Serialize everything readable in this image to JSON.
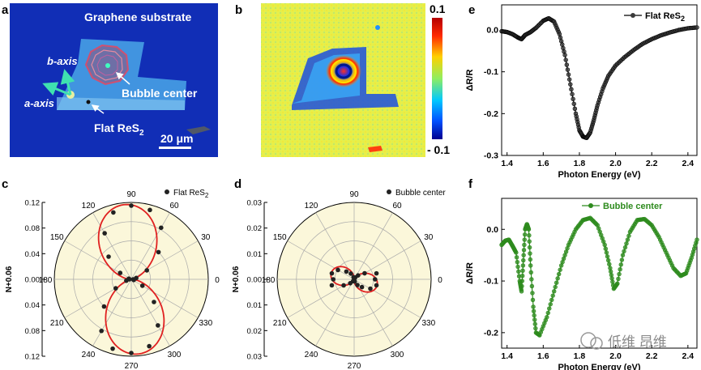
{
  "figure": {
    "panels": {
      "a": {
        "letter": "a",
        "substrate_label": "Graphene substrate",
        "b_axis_label": "b-axis",
        "a_axis_label": "a-axis",
        "bubble_label": "Bubble center",
        "flat_label_main": "Flat ReS",
        "flat_label_sub": "2",
        "scalebar_label": "20 μm"
      },
      "b": {
        "letter": "b",
        "colorbar_max": "0.1",
        "colorbar_min": "- 0.1"
      },
      "c": {
        "letter": "c"
      },
      "d": {
        "letter": "d"
      },
      "e": {
        "letter": "e"
      },
      "f": {
        "letter": "f"
      }
    },
    "watermark": "低维 昂维",
    "colors": {
      "flat_series": "#000000",
      "bubble_series": "#2e8b1e",
      "fit_curve": "#e02020",
      "polar_bg": "#fbf7da"
    }
  },
  "chart_data": [
    {
      "id": "c",
      "type": "scatter",
      "coordinate": "polar",
      "legend": "Flat ReS",
      "legend_sub": "2",
      "legend_position": "top-right",
      "ylabel": "N+0.06",
      "radial_tick_labels": [
        "0.12",
        "0.08",
        "0.04",
        "0.00",
        "0.04",
        "0.08",
        "0.12"
      ],
      "angle_labels": [
        "0",
        "30",
        "60",
        "90",
        "120",
        "150",
        "180",
        "210",
        "240",
        "270",
        "300",
        "330"
      ],
      "angles_deg": [
        0,
        15,
        30,
        45,
        60,
        75,
        90,
        105,
        120,
        135,
        150,
        165,
        180,
        195,
        210,
        225,
        240,
        255,
        270,
        285,
        300,
        315,
        330,
        345
      ],
      "values": [
        0.003,
        0.008,
        0.028,
        0.06,
        0.093,
        0.112,
        0.115,
        0.108,
        0.083,
        0.05,
        0.02,
        0.004,
        0.003,
        0.008,
        0.028,
        0.06,
        0.093,
        0.112,
        0.115,
        0.108,
        0.083,
        0.05,
        0.02,
        0.004
      ],
      "fit": "cos-squared, max along 95° / 275°",
      "r_max": 0.12
    },
    {
      "id": "d",
      "type": "scatter",
      "coordinate": "polar",
      "legend": "Bubble center",
      "legend_position": "top-right",
      "ylabel": "N+0.06",
      "radial_tick_labels": [
        "0.03",
        "0.02",
        "0.01",
        "0.00",
        "0.01",
        "0.02",
        "0.03"
      ],
      "angle_labels": [
        "0",
        "30",
        "60",
        "90",
        "120",
        "150",
        "180",
        "210",
        "240",
        "270",
        "300",
        "330"
      ],
      "angles_deg": [
        0,
        15,
        30,
        45,
        60,
        75,
        90,
        105,
        120,
        135,
        150,
        165,
        180,
        195,
        210,
        225,
        240,
        255,
        270,
        285,
        300,
        315,
        330,
        345
      ],
      "values": [
        0.0095,
        0.0105,
        0.0055,
        0.0025,
        0.001,
        0.0005,
        0.0004,
        0.001,
        0.003,
        0.005,
        0.0085,
        0.0105,
        0.0095,
        0.0105,
        0.0055,
        0.0025,
        0.001,
        0.0005,
        0.0004,
        0.001,
        0.003,
        0.005,
        0.0085,
        0.0105
      ],
      "fit": "cos-squared, max along ~165° / ~345°",
      "r_max": 0.035
    },
    {
      "id": "e",
      "type": "line",
      "legend": "Flat ReS",
      "legend_sub": "2",
      "legend_position": "top-right",
      "xlabel": "Photon Energy (eV)",
      "ylabel": "ΔR/R",
      "xlim": [
        1.37,
        2.45
      ],
      "ylim": [
        -0.3,
        0.06
      ],
      "xticks": [
        1.4,
        1.6,
        1.8,
        2.0,
        2.2,
        2.4
      ],
      "yticks": [
        0.0,
        -0.1,
        -0.2,
        -0.3
      ],
      "x": [
        1.37,
        1.4,
        1.43,
        1.46,
        1.48,
        1.5,
        1.53,
        1.56,
        1.6,
        1.63,
        1.66,
        1.69,
        1.72,
        1.75,
        1.78,
        1.8,
        1.82,
        1.84,
        1.86,
        1.88,
        1.9,
        1.93,
        1.96,
        2.0,
        2.05,
        2.1,
        2.15,
        2.2,
        2.25,
        2.3,
        2.35,
        2.4,
        2.45
      ],
      "y": [
        -0.003,
        -0.005,
        -0.01,
        -0.018,
        -0.022,
        -0.012,
        -0.005,
        0.005,
        0.022,
        0.028,
        0.02,
        -0.01,
        -0.06,
        -0.13,
        -0.2,
        -0.24,
        -0.255,
        -0.258,
        -0.245,
        -0.215,
        -0.18,
        -0.14,
        -0.11,
        -0.085,
        -0.065,
        -0.048,
        -0.033,
        -0.022,
        -0.013,
        -0.006,
        0.0,
        0.004,
        0.006
      ]
    },
    {
      "id": "f",
      "type": "line",
      "legend": "Bubble center",
      "legend_position": "top-right",
      "xlabel": "Photon Energy (eV)",
      "ylabel": "ΔR/R",
      "xlim": [
        1.37,
        2.45
      ],
      "ylim": [
        -0.23,
        0.06
      ],
      "xticks": [
        1.4,
        1.6,
        1.8,
        2.0,
        2.2,
        2.4
      ],
      "yticks": [
        0.0,
        -0.1,
        -0.2
      ],
      "x": [
        1.37,
        1.39,
        1.41,
        1.43,
        1.45,
        1.47,
        1.48,
        1.49,
        1.5,
        1.51,
        1.52,
        1.53,
        1.545,
        1.56,
        1.58,
        1.62,
        1.66,
        1.7,
        1.74,
        1.78,
        1.82,
        1.86,
        1.9,
        1.94,
        1.97,
        1.99,
        2.01,
        2.04,
        2.08,
        2.12,
        2.16,
        2.2,
        2.24,
        2.28,
        2.32,
        2.36,
        2.39,
        2.42,
        2.45
      ],
      "y": [
        -0.03,
        -0.022,
        -0.02,
        -0.032,
        -0.045,
        -0.1,
        -0.12,
        -0.06,
        0.0,
        0.01,
        0.0,
        -0.07,
        -0.15,
        -0.2,
        -0.205,
        -0.17,
        -0.12,
        -0.07,
        -0.03,
        0.0,
        0.018,
        0.022,
        0.008,
        -0.03,
        -0.075,
        -0.115,
        -0.105,
        -0.05,
        -0.005,
        0.018,
        0.02,
        0.008,
        -0.015,
        -0.045,
        -0.075,
        -0.09,
        -0.085,
        -0.055,
        -0.02
      ]
    }
  ]
}
